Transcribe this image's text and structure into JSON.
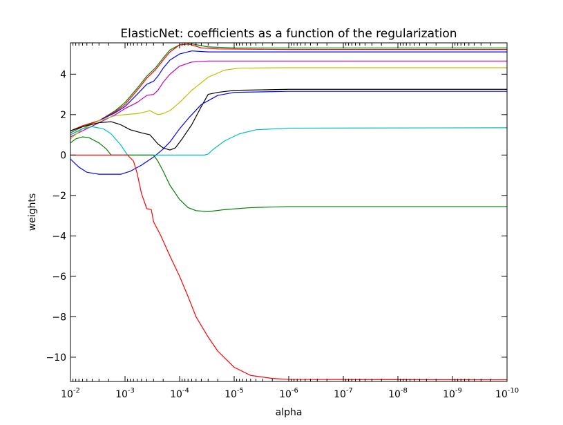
{
  "chart_data": {
    "type": "line",
    "title": "ElasticNet: coefficients as a function of the regularization",
    "xlabel": "alpha",
    "ylabel": "weights",
    "x_scale": "log",
    "x_reversed": true,
    "xlim": [
      0.01,
      1e-10
    ],
    "ylim": [
      -11.2,
      5.55
    ],
    "x_tick_labels": [
      {
        "value": 0.01,
        "base": "10",
        "exp": "-2"
      },
      {
        "value": 0.001,
        "base": "10",
        "exp": "-3"
      },
      {
        "value": 0.0001,
        "base": "10",
        "exp": "-4"
      },
      {
        "value": 1e-05,
        "base": "10",
        "exp": "-5"
      },
      {
        "value": 1e-06,
        "base": "10",
        "exp": "-6"
      },
      {
        "value": 1e-07,
        "base": "10",
        "exp": "-7"
      },
      {
        "value": 1e-08,
        "base": "10",
        "exp": "-8"
      },
      {
        "value": 1e-09,
        "base": "10",
        "exp": "-9"
      },
      {
        "value": 1e-10,
        "base": "10",
        "exp": "-10"
      }
    ],
    "y_tick_labels": [
      {
        "value": 4,
        "label": "4"
      },
      {
        "value": 2,
        "label": "2"
      },
      {
        "value": 0,
        "label": "0"
      },
      {
        "value": -2,
        "label": "−2"
      },
      {
        "value": -4,
        "label": "−4"
      },
      {
        "value": -6,
        "label": "−6"
      },
      {
        "value": -8,
        "label": "−8"
      },
      {
        "value": -10,
        "label": "−10"
      }
    ],
    "grid": false,
    "legend": "none",
    "series": [
      {
        "color": "#008000",
        "points": [
          [
            0.01,
            1.1
          ],
          [
            0.006,
            1.4
          ],
          [
            0.003,
            1.7
          ],
          [
            0.0015,
            2.2
          ],
          [
            0.001,
            2.6
          ],
          [
            0.0006,
            3.3
          ],
          [
            0.0004,
            3.9
          ],
          [
            0.00028,
            4.3
          ],
          [
            0.0002,
            4.8
          ],
          [
            0.00015,
            5.2
          ],
          [
            0.0001,
            5.45
          ],
          [
            6e-05,
            5.5
          ],
          [
            3e-05,
            5.35
          ],
          [
            1e-05,
            5.3
          ],
          [
            1e-06,
            5.3
          ],
          [
            1e-10,
            5.3
          ]
        ]
      },
      {
        "color": "#ff0000",
        "points": [
          [
            0.01,
            1.2
          ],
          [
            0.006,
            1.45
          ],
          [
            0.003,
            1.7
          ],
          [
            0.0015,
            2.15
          ],
          [
            0.001,
            2.5
          ],
          [
            0.0006,
            3.2
          ],
          [
            0.0004,
            3.8
          ],
          [
            0.00028,
            4.2
          ],
          [
            0.0002,
            4.7
          ],
          [
            0.00015,
            5.1
          ],
          [
            0.0001,
            5.45
          ],
          [
            7e-05,
            5.5
          ],
          [
            4e-05,
            5.3
          ],
          [
            2e-05,
            5.25
          ],
          [
            1e-06,
            5.22
          ],
          [
            1e-10,
            5.22
          ]
        ]
      },
      {
        "color": "#0000ff",
        "points": [
          [
            0.01,
            1.0
          ],
          [
            0.006,
            1.3
          ],
          [
            0.003,
            1.7
          ],
          [
            0.0015,
            2.1
          ],
          [
            0.001,
            2.4
          ],
          [
            0.0006,
            3.0
          ],
          [
            0.0004,
            3.5
          ],
          [
            0.0003,
            3.65
          ],
          [
            0.00025,
            3.9
          ],
          [
            0.0002,
            4.3
          ],
          [
            0.00015,
            4.7
          ],
          [
            0.0001,
            5.0
          ],
          [
            6e-05,
            5.15
          ],
          [
            3e-05,
            5.1
          ],
          [
            1e-05,
            5.1
          ],
          [
            1e-10,
            5.1
          ]
        ]
      },
      {
        "color": "#bf00bf",
        "points": [
          [
            0.01,
            0.9
          ],
          [
            0.006,
            1.2
          ],
          [
            0.003,
            1.6
          ],
          [
            0.0015,
            2.0
          ],
          [
            0.001,
            2.3
          ],
          [
            0.0006,
            2.6
          ],
          [
            0.0004,
            2.95
          ],
          [
            0.0003,
            3.0
          ],
          [
            0.00025,
            3.2
          ],
          [
            0.0002,
            3.6
          ],
          [
            0.00015,
            4.0
          ],
          [
            0.0001,
            4.4
          ],
          [
            6e-05,
            4.6
          ],
          [
            3e-05,
            4.65
          ],
          [
            1e-05,
            4.65
          ],
          [
            1e-10,
            4.65
          ]
        ]
      },
      {
        "color": "#bfbf00",
        "points": [
          [
            0.01,
            0.8
          ],
          [
            0.006,
            1.3
          ],
          [
            0.003,
            1.7
          ],
          [
            0.0015,
            1.95
          ],
          [
            0.001,
            2.0
          ],
          [
            0.0006,
            2.05
          ],
          [
            0.0004,
            2.15
          ],
          [
            0.00035,
            2.2
          ],
          [
            0.0003,
            2.1
          ],
          [
            0.00025,
            2.0
          ],
          [
            0.0002,
            2.05
          ],
          [
            0.00015,
            2.2
          ],
          [
            0.0001,
            2.6
          ],
          [
            6e-05,
            3.2
          ],
          [
            3e-05,
            3.85
          ],
          [
            1.5e-05,
            4.2
          ],
          [
            8e-06,
            4.3
          ],
          [
            1e-06,
            4.32
          ],
          [
            1e-10,
            4.32
          ]
        ]
      },
      {
        "color": "#000000",
        "points": [
          [
            0.01,
            1.2
          ],
          [
            0.006,
            1.4
          ],
          [
            0.003,
            1.6
          ],
          [
            0.0018,
            1.65
          ],
          [
            0.0012,
            1.5
          ],
          [
            0.0008,
            1.25
          ],
          [
            0.0005,
            1.1
          ],
          [
            0.00035,
            1.0
          ],
          [
            0.0003,
            0.8
          ],
          [
            0.00025,
            0.55
          ],
          [
            0.0002,
            0.35
          ],
          [
            0.00015,
            0.25
          ],
          [
            0.00012,
            0.35
          ],
          [
            9e-05,
            0.8
          ],
          [
            6e-05,
            1.5
          ],
          [
            4e-05,
            2.4
          ],
          [
            3e-05,
            3.0
          ],
          [
            2e-05,
            3.1
          ],
          [
            1e-05,
            3.2
          ],
          [
            1e-06,
            3.25
          ],
          [
            1e-10,
            3.25
          ]
        ]
      },
      {
        "color": "#0000ff",
        "points": [
          [
            0.01,
            -0.2
          ],
          [
            0.007,
            -0.6
          ],
          [
            0.005,
            -0.85
          ],
          [
            0.003,
            -0.95
          ],
          [
            0.002,
            -0.95
          ],
          [
            0.0012,
            -0.95
          ],
          [
            0.0008,
            -0.8
          ],
          [
            0.0005,
            -0.5
          ],
          [
            0.0003,
            -0.1
          ],
          [
            0.0002,
            0.3
          ],
          [
            0.00015,
            0.65
          ],
          [
            0.0001,
            1.3
          ],
          [
            7e-05,
            1.8
          ],
          [
            4e-05,
            2.5
          ],
          [
            2e-05,
            2.95
          ],
          [
            1e-05,
            3.1
          ],
          [
            1e-06,
            3.15
          ],
          [
            1e-10,
            3.15
          ]
        ]
      },
      {
        "color": "#00bfbf",
        "points": [
          [
            0.01,
            1.0
          ],
          [
            0.006,
            1.3
          ],
          [
            0.004,
            1.4
          ],
          [
            0.0025,
            1.3
          ],
          [
            0.0018,
            1.05
          ],
          [
            0.0012,
            0.5
          ],
          [
            0.0009,
            0.0
          ],
          [
            3.5e-05,
            0.0
          ],
          [
            3e-05,
            0.05
          ],
          [
            2.5e-05,
            0.25
          ],
          [
            1.5e-05,
            0.7
          ],
          [
            8e-06,
            1.05
          ],
          [
            4e-06,
            1.25
          ],
          [
            1e-06,
            1.33
          ],
          [
            1e-10,
            1.35
          ]
        ]
      },
      {
        "color": "#008000",
        "points": [
          [
            0.01,
            0.6
          ],
          [
            0.008,
            0.8
          ],
          [
            0.006,
            0.9
          ],
          [
            0.0045,
            0.85
          ],
          [
            0.003,
            0.6
          ],
          [
            0.0022,
            0.3
          ],
          [
            0.0018,
            0.0
          ],
          [
            0.0003,
            0.0
          ],
          [
            0.00025,
            -0.3
          ],
          [
            0.0002,
            -0.8
          ],
          [
            0.00015,
            -1.5
          ],
          [
            0.0001,
            -2.2
          ],
          [
            7e-05,
            -2.6
          ],
          [
            5e-05,
            -2.75
          ],
          [
            3e-05,
            -2.8
          ],
          [
            1.5e-05,
            -2.7
          ],
          [
            5e-06,
            -2.6
          ],
          [
            1e-06,
            -2.55
          ],
          [
            1e-10,
            -2.55
          ]
        ]
      },
      {
        "color": "#ff0000",
        "points": [
          [
            0.01,
            0.0
          ],
          [
            0.0009,
            0.0
          ],
          [
            0.0007,
            -0.3
          ],
          [
            0.0006,
            -0.9
          ],
          [
            0.0005,
            -1.9
          ],
          [
            0.0004,
            -2.65
          ],
          [
            0.00033,
            -2.7
          ],
          [
            0.0003,
            -3.3
          ],
          [
            0.00022,
            -4.0
          ],
          [
            0.00015,
            -5.0
          ],
          [
            0.0001,
            -6.0
          ],
          [
            7e-05,
            -7.0
          ],
          [
            5e-05,
            -8.0
          ],
          [
            3e-05,
            -9.0
          ],
          [
            2e-05,
            -9.7
          ],
          [
            1e-05,
            -10.5
          ],
          [
            5e-06,
            -10.9
          ],
          [
            2e-06,
            -11.05
          ],
          [
            1e-06,
            -11.1
          ],
          [
            1e-10,
            -11.12
          ]
        ]
      }
    ]
  }
}
